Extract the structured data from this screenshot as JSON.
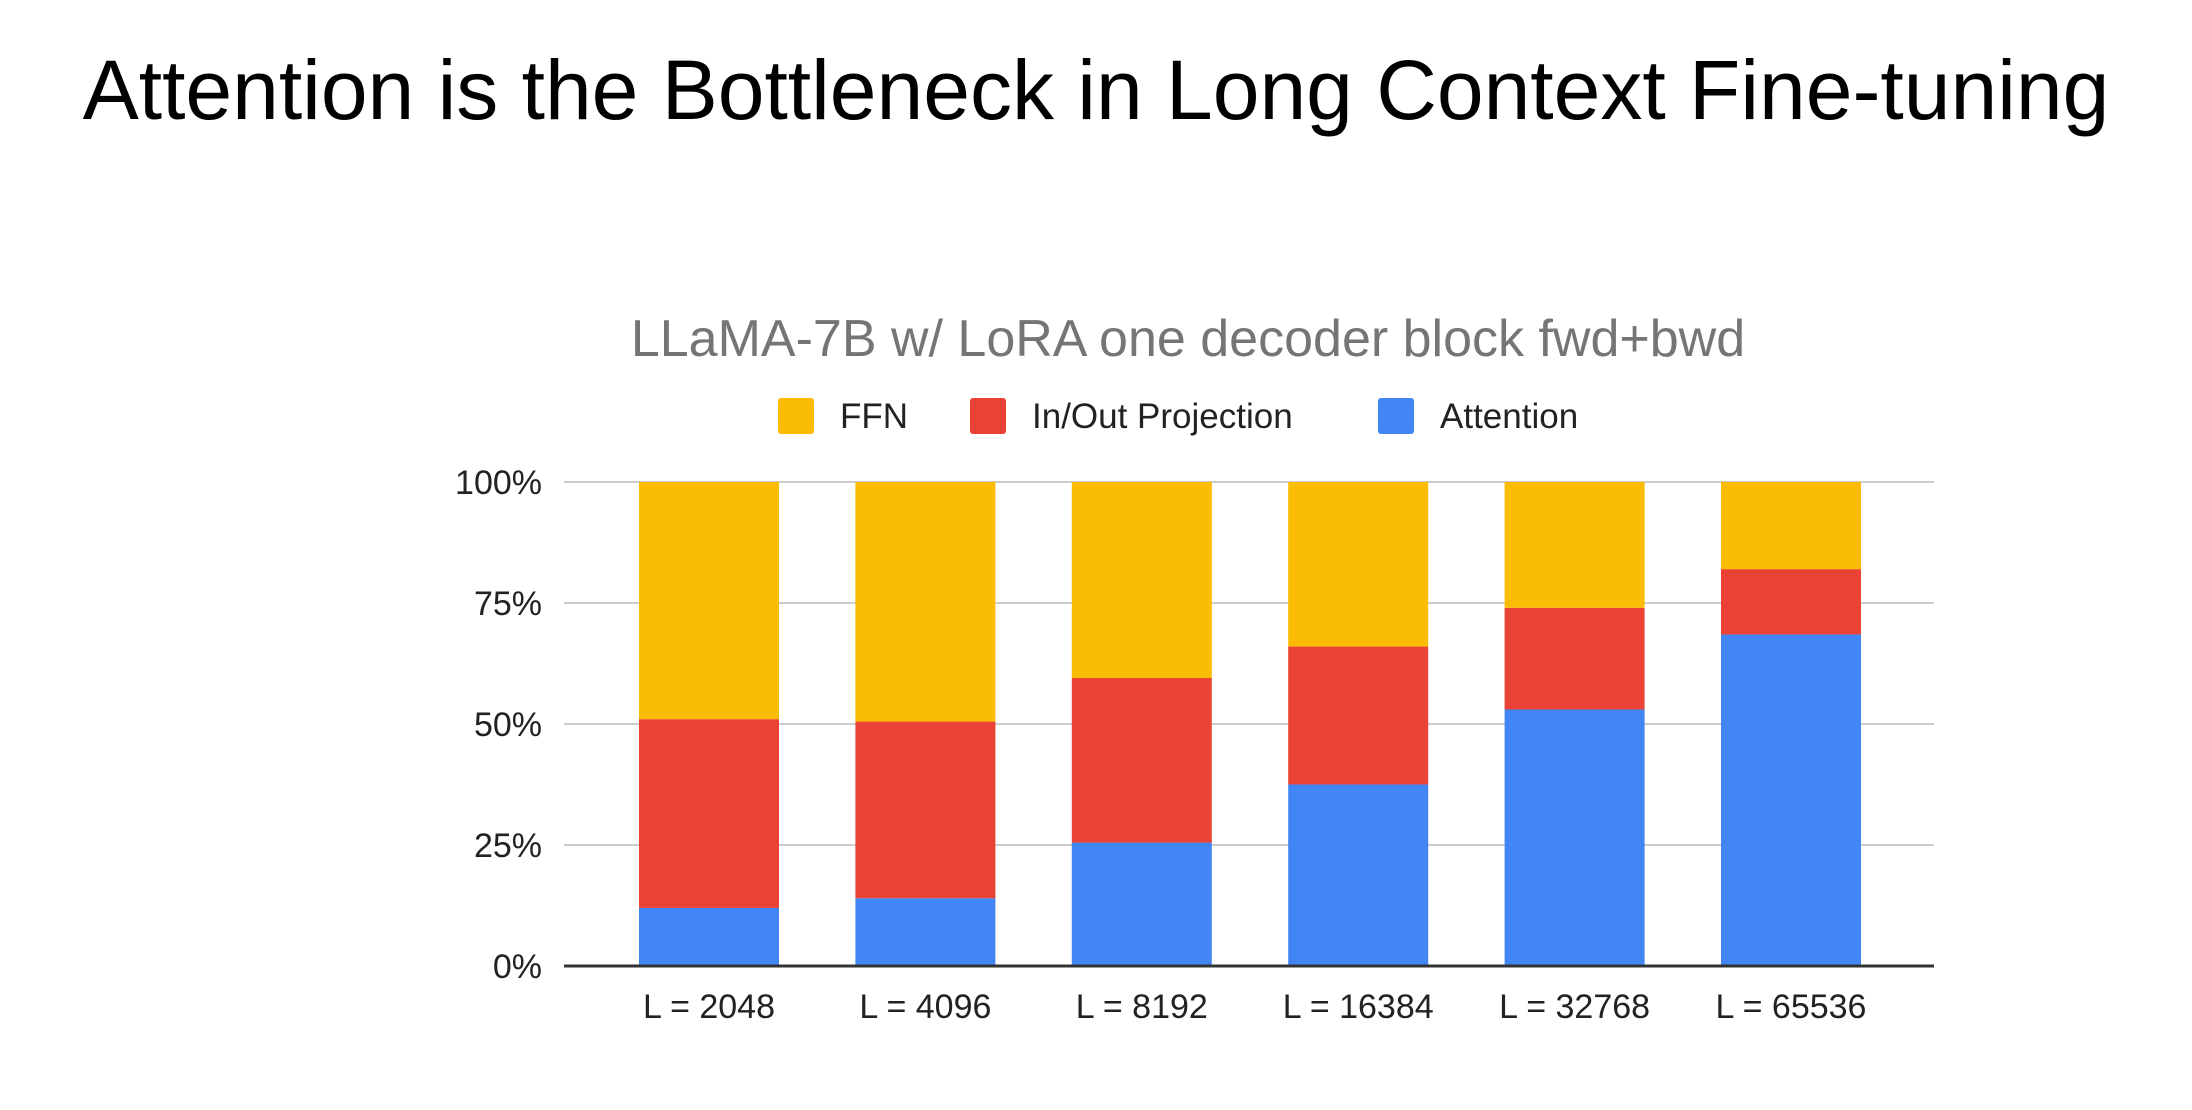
{
  "slide": {
    "title": "Attention is the Bottleneck in Long Context Fine-tuning"
  },
  "chart_data": {
    "type": "bar",
    "stacked": true,
    "normalized": true,
    "title": "LLaMA-7B w/ LoRA one decoder block fwd+bwd",
    "xlabel": "",
    "ylabel": "",
    "categories": [
      "L = 2048",
      "L = 4096",
      "L = 8192",
      "L = 16384",
      "L = 32768",
      "L = 65536"
    ],
    "series": [
      {
        "name": "Attention",
        "color": "#4285f4",
        "values": [
          12,
          14,
          25.5,
          37.5,
          53,
          68.5
        ]
      },
      {
        "name": "In/Out Projection",
        "color": "#ea4335",
        "values": [
          39,
          36.5,
          34,
          28.5,
          21,
          13.5
        ]
      },
      {
        "name": "FFN",
        "color": "#fbbc04",
        "values": [
          49,
          49.5,
          40.5,
          34,
          26,
          18
        ]
      }
    ],
    "legend_order": [
      "FFN",
      "In/Out Projection",
      "Attention"
    ],
    "legend_position": "top",
    "yticks": [
      "0%",
      "25%",
      "50%",
      "75%",
      "100%"
    ],
    "ylim": [
      0,
      100
    ],
    "grid": true
  }
}
